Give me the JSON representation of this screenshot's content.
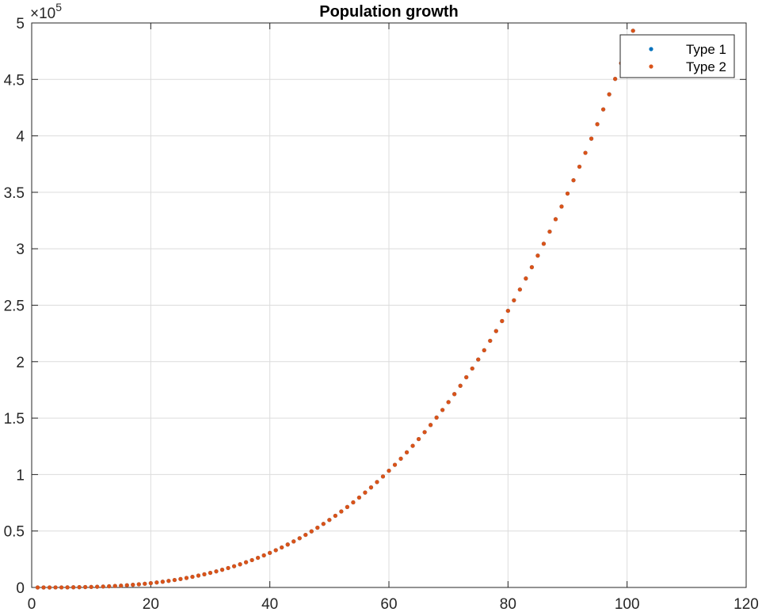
{
  "chart_data": {
    "type": "scatter",
    "title": "Population growth",
    "xlabel": "",
    "ylabel": "",
    "xlim": [
      0,
      120
    ],
    "ylim": [
      0,
      500000
    ],
    "grid": true,
    "x_ticks": [
      0,
      20,
      40,
      60,
      80,
      100,
      120
    ],
    "x_tick_labels": [
      "0",
      "20",
      "40",
      "60",
      "80",
      "100",
      "120"
    ],
    "y_ticks": [
      0,
      50000,
      100000,
      150000,
      200000,
      250000,
      300000,
      350000,
      400000,
      450000,
      500000
    ],
    "y_tick_labels": [
      "0",
      "0.5",
      "1",
      "1.5",
      "2",
      "2.5",
      "3",
      "3.5",
      "4",
      "4.5",
      "5"
    ],
    "y_exponent": {
      "base": "×10",
      "power": "5"
    },
    "legend": {
      "position": "top-right",
      "entries": [
        "Type 1",
        "Type 2"
      ]
    },
    "series": [
      {
        "name": "Type 1",
        "color": "#0072BD",
        "x_start": 1,
        "x_end": 101,
        "x_step": 1,
        "formula": "y = 0.4786 * x^3",
        "visible": "hidden-under-type-2"
      },
      {
        "name": "Type 2",
        "color": "#D95319",
        "x_start": 1,
        "x_end": 101,
        "x_step": 1,
        "formula": "y = 0.4786 * x^3"
      }
    ]
  }
}
